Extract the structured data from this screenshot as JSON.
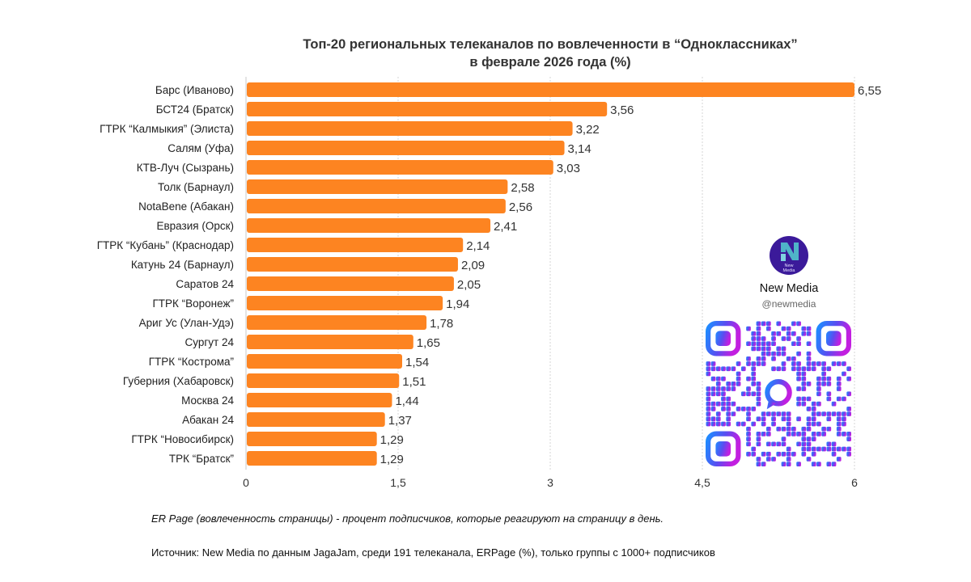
{
  "chart_data": {
    "type": "bar",
    "orientation": "horizontal",
    "title": "Топ-20 региональных телеканалов по вовлеченности в “Одноклассниках”",
    "subtitle": "в феврале 2026 года (%)",
    "xlabel": "",
    "ylabel": "",
    "xlim": [
      0,
      6
    ],
    "grid": true,
    "ticks": [
      "0",
      "1,5",
      "3",
      "4,5",
      "6"
    ],
    "tick_values": [
      0,
      1.5,
      3,
      4.5,
      6
    ],
    "bar_color": "#fd8421",
    "categories": [
      "Барс (Иваново)",
      "БСТ24 (Братск)",
      "ГТРК “Калмыкия” (Элиста)",
      "Салям (Уфа)",
      "КТВ-Луч (Сызрань)",
      "Толк (Барнаул)",
      "NotaBene (Абакан)",
      "Евразия (Орск)",
      "ГТРК “Кубань” (Краснодар)",
      "Катунь 24 (Барнаул)",
      "Саратов 24",
      "ГТРК “Воронеж”",
      "Ариг Ус (Улан-Удэ)",
      "Сургут 24",
      "ГТРК “Кострома”",
      "Губерния (Хабаровск)",
      "Москва 24",
      "Абакан 24",
      "ГТРК “Новосибирск)",
      "ТРК “Братск”"
    ],
    "values": [
      6.55,
      3.56,
      3.22,
      3.14,
      3.03,
      2.58,
      2.56,
      2.41,
      2.14,
      2.09,
      2.05,
      1.94,
      1.78,
      1.65,
      1.54,
      1.51,
      1.44,
      1.37,
      1.29,
      1.29
    ],
    "value_labels": [
      "6,55",
      "3,56",
      "3,22",
      "3,14",
      "3,03",
      "2,58",
      "2,56",
      "2,41",
      "2,14",
      "2,09",
      "2,05",
      "1,94",
      "1,78",
      "1,65",
      "1,54",
      "1,51",
      "1,44",
      "1,37",
      "1,29",
      "1,29"
    ]
  },
  "brand": {
    "name": "New Media",
    "handle": "@newmedia",
    "logo_text": "New Media",
    "logo_letter": "N"
  },
  "notes": {
    "definition": "ER Page (вовлеченность страницы) - процент подписчиков, которые реагируют на страницу в день.",
    "source": "Источник: New Media по данным JagaJam, среди 191 телеканала, ERPage (%), только группы с 1000+ подписчиков"
  }
}
